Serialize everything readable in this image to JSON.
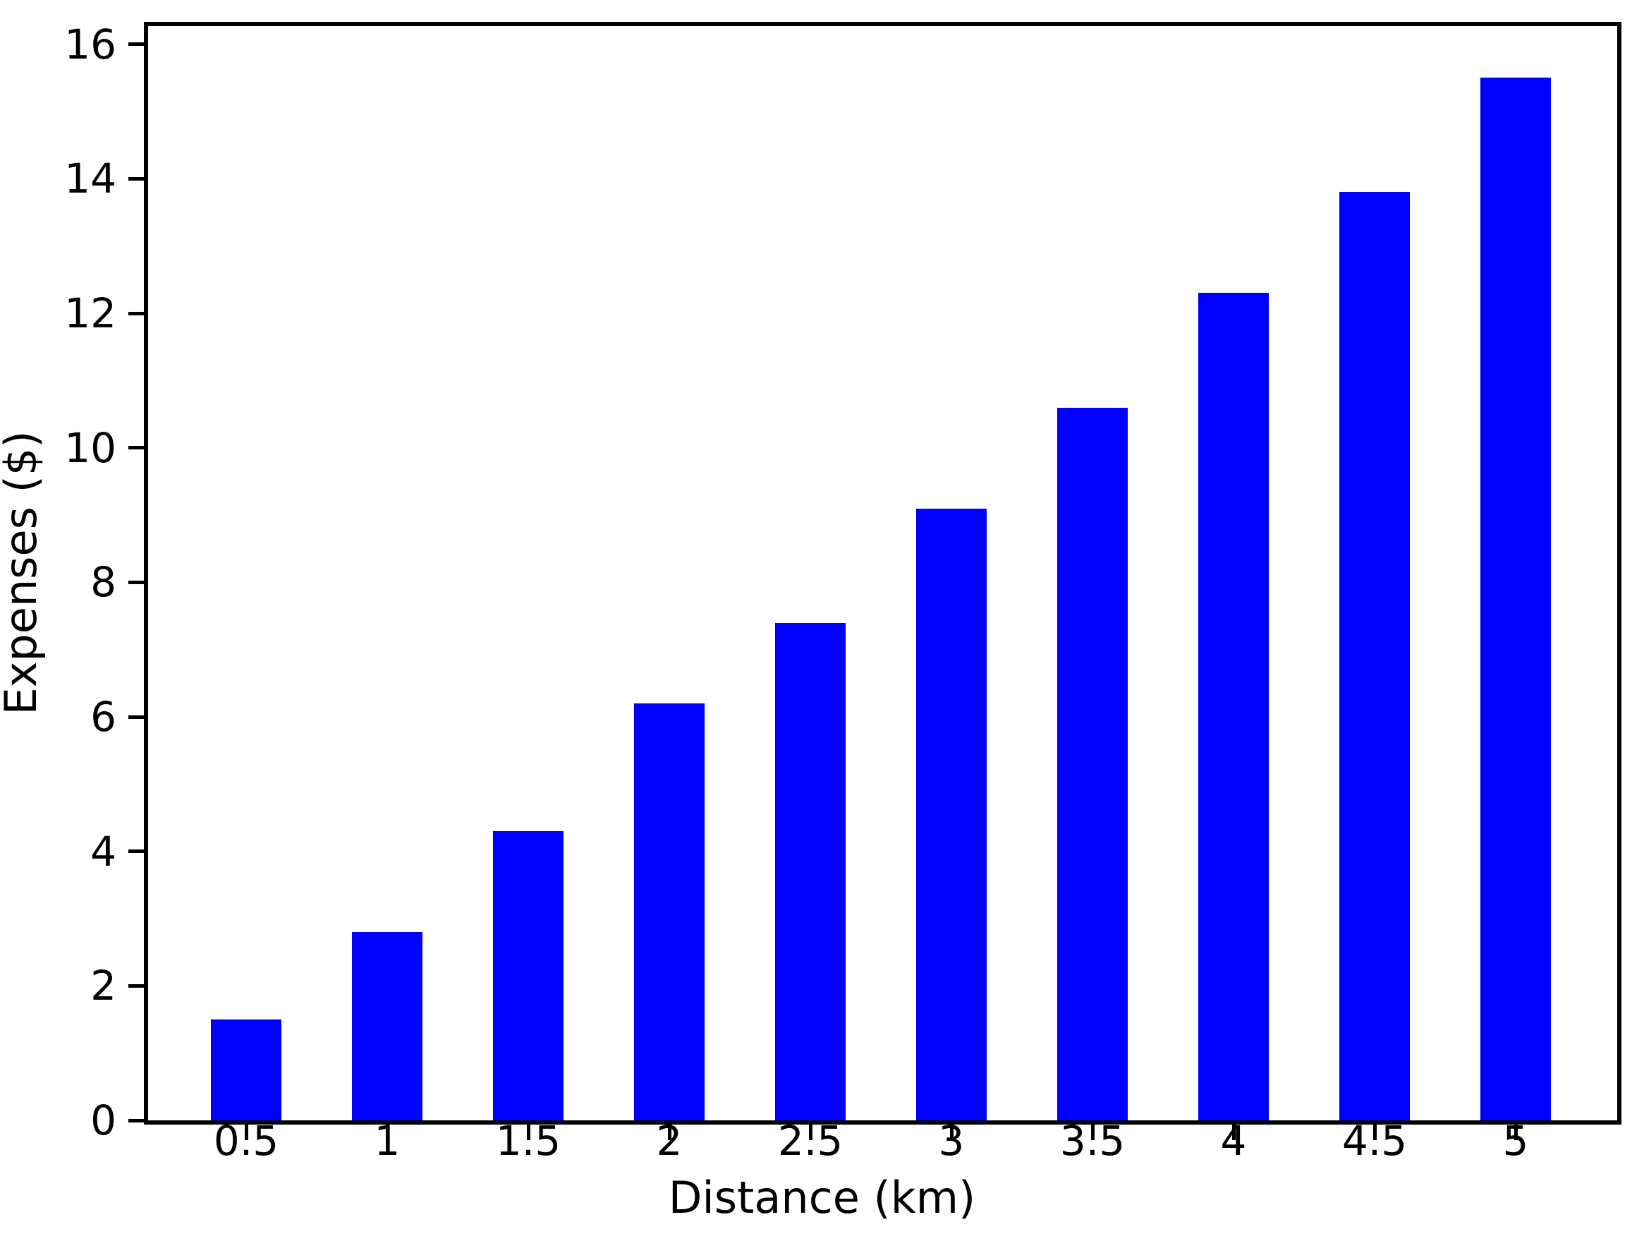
{
  "chart_data": {
    "type": "bar",
    "title": "",
    "xlabel": "Distance (km)",
    "ylabel": "Expenses ($)",
    "categories": [
      "0.5",
      "1",
      "1.5",
      "2",
      "2.5",
      "3",
      "3.5",
      "4",
      "4.5",
      "5"
    ],
    "values": [
      1.5,
      2.8,
      4.3,
      6.2,
      7.4,
      9.1,
      10.6,
      12.3,
      13.8,
      15.5
    ],
    "yticks": [
      0,
      2,
      4,
      6,
      8,
      10,
      12,
      14,
      16
    ],
    "ylim": [
      0,
      16.27
    ],
    "xlabel_units": "km",
    "ylabel_units": "$",
    "bar_color": "#0000ff",
    "axis_color": "#000000",
    "background_color": "#ffffff",
    "grid": false,
    "legend": null
  }
}
